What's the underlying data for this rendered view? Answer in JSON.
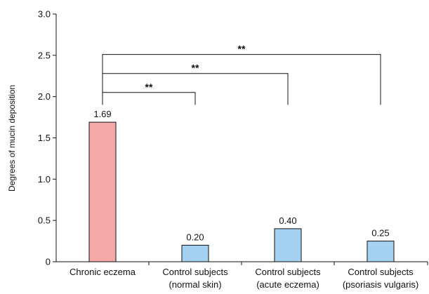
{
  "chart_data": {
    "type": "bar",
    "title": "",
    "xlabel": "",
    "ylabel": "Degrees of mucin deposition",
    "ylim": [
      0,
      3.0
    ],
    "yticks": [
      "0",
      "0.5",
      "1.0",
      "1.5",
      "2.0",
      "2.5",
      "3.0"
    ],
    "ytick_values": [
      0,
      0.5,
      1.0,
      1.5,
      2.0,
      2.5,
      3.0
    ],
    "grid": false,
    "categories": [
      {
        "line1": "Chronic eczema",
        "line2": ""
      },
      {
        "line1": "Control subjects",
        "line2": "(normal skin)"
      },
      {
        "line1": "Control subjects",
        "line2": "(acute eczema)"
      },
      {
        "line1": "Control subjects",
        "line2": "(psoriasis vulgaris)"
      }
    ],
    "values": [
      1.69,
      0.2,
      0.4,
      0.25
    ],
    "value_labels": [
      "1.69",
      "0.20",
      "0.40",
      "0.25"
    ],
    "colors": [
      "#f4a9a8",
      "#a6d2f1",
      "#a6d2f1",
      "#a6d2f1"
    ],
    "significance": [
      {
        "from": 0,
        "to": 1,
        "label": "**",
        "level": 2.05
      },
      {
        "from": 0,
        "to": 2,
        "label": "**",
        "level": 2.28
      },
      {
        "from": 0,
        "to": 3,
        "label": "**",
        "level": 2.51
      }
    ],
    "significance_drop_to": 1.9
  }
}
